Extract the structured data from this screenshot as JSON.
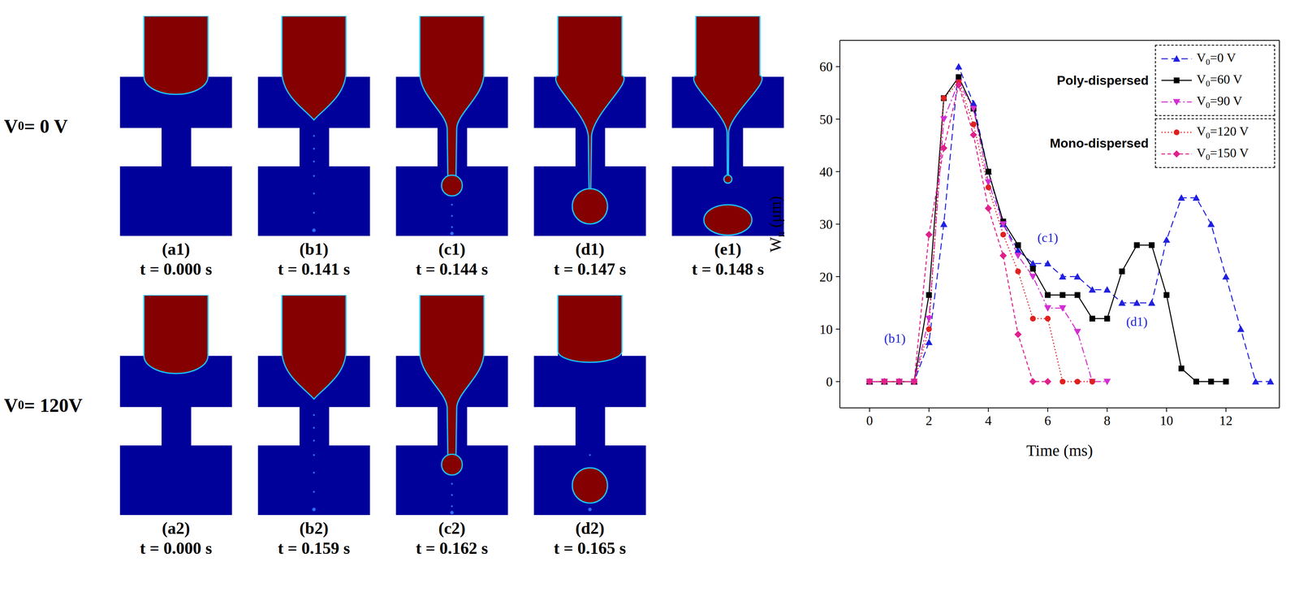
{
  "panels": {
    "rows": [
      {
        "label": "V0= 0 V",
        "frames": [
          {
            "label": "(a1)",
            "time": "t = 0.000 s"
          },
          {
            "label": "(b1)",
            "time": "t = 0.141 s"
          },
          {
            "label": "(c1)",
            "time": "t = 0.144 s"
          },
          {
            "label": "(d1)",
            "time": "t = 0.147 s"
          },
          {
            "label": "(e1)",
            "time": "t = 0.148 s"
          }
        ]
      },
      {
        "label": "V0= 120V",
        "frames": [
          {
            "label": "(a2)",
            "time": "t = 0.000 s"
          },
          {
            "label": "(b2)",
            "time": "t = 0.159 s"
          },
          {
            "label": "(c2)",
            "time": "t = 0.162 s"
          },
          {
            "label": "(d2)",
            "time": "t = 0.165 s"
          }
        ]
      }
    ]
  },
  "chart_data": {
    "type": "line",
    "x_label": "Time (ms)",
    "y_label": "Wn (μm)",
    "xlim": [
      -1,
      13.8
    ],
    "xticks": [
      0,
      2,
      4,
      6,
      8,
      10,
      12
    ],
    "ylim": [
      -5,
      65
    ],
    "yticks": [
      0,
      10,
      20,
      30,
      40,
      50,
      60
    ],
    "legend": "top right",
    "series": [
      {
        "name": "V0=0 V",
        "group": "Poly-dispersed",
        "color": "#2020e0",
        "line_style": "dashed",
        "marker": "triangle-up",
        "x": [
          0,
          0.5,
          1,
          1.5,
          2,
          2.5,
          3,
          3.5,
          4,
          4.5,
          5,
          5.5,
          6,
          6.5,
          7,
          7.5,
          8,
          8.5,
          9,
          9.5,
          10,
          10.5,
          11,
          11.5,
          12,
          12.5,
          13,
          13.5
        ],
        "values": [
          0,
          0,
          0,
          0,
          7.5,
          30,
          60,
          53,
          40,
          30,
          25,
          22.5,
          22.5,
          20,
          20,
          17.5,
          17.5,
          15,
          15,
          15,
          27,
          35,
          35,
          30,
          20,
          10,
          0,
          0
        ]
      },
      {
        "name": "V0=60 V",
        "group": "Poly-dispersed",
        "color": "#000000",
        "line_style": "solid",
        "marker": "square",
        "x": [
          0,
          0.5,
          1,
          1.5,
          2,
          2.5,
          3,
          3.5,
          4,
          4.5,
          5,
          5.5,
          6,
          6.5,
          7,
          7.5,
          8,
          8.5,
          9,
          9.5,
          10,
          10.5,
          11,
          11.5,
          12
        ],
        "values": [
          0,
          0,
          0,
          0,
          16.5,
          54,
          58,
          52,
          40,
          30.5,
          26,
          21.5,
          16.5,
          16.5,
          16.5,
          12,
          12,
          21,
          26,
          26,
          16.5,
          2.5,
          0,
          0,
          0
        ]
      },
      {
        "name": "V0=90 V",
        "group": "Poly-dispersed",
        "color": "#d22ed2",
        "line_style": "dashdot",
        "marker": "triangle-down",
        "x": [
          0,
          0.5,
          1,
          1.5,
          2,
          2.5,
          3,
          3.5,
          4,
          4.5,
          5,
          5.5,
          6,
          6.5,
          7,
          7.5,
          8
        ],
        "values": [
          0,
          0,
          0,
          0,
          12,
          50,
          57,
          52,
          38,
          30,
          24,
          20,
          14,
          14,
          9.5,
          0,
          0
        ]
      },
      {
        "name": "V0=120 V",
        "group": "Mono-dispersed",
        "color": "#e02020",
        "line_style": "dotted",
        "marker": "circle",
        "x": [
          0,
          0.5,
          1,
          1.5,
          2,
          2.5,
          3,
          3.5,
          4,
          4.5,
          5,
          5.5,
          6,
          6.5,
          7,
          7.5
        ],
        "values": [
          0,
          0,
          0,
          0,
          10,
          54,
          57,
          49,
          37,
          28,
          21,
          12,
          12,
          0,
          0,
          0
        ]
      },
      {
        "name": "V0=150 V",
        "group": "Mono-dispersed",
        "color": "#e0208c",
        "line_style": "densely-dashed",
        "marker": "diamond",
        "x": [
          0,
          0.5,
          1,
          1.5,
          2,
          2.5,
          3,
          3.5,
          4,
          4.5,
          5,
          5.5,
          6
        ],
        "values": [
          0,
          0,
          0,
          0,
          28,
          44.5,
          56.5,
          47,
          33,
          24,
          9,
          0,
          0
        ]
      }
    ],
    "annotations": [
      {
        "text": "(b1)",
        "x": 0.85,
        "y": 8.3,
        "color": "#2020e0"
      },
      {
        "text": "(c1)",
        "x": 6.0,
        "y": 27.5,
        "color": "#2020e0"
      },
      {
        "text": "(d1)",
        "x": 9.0,
        "y": 11.5,
        "color": "#2020e0"
      }
    ]
  }
}
